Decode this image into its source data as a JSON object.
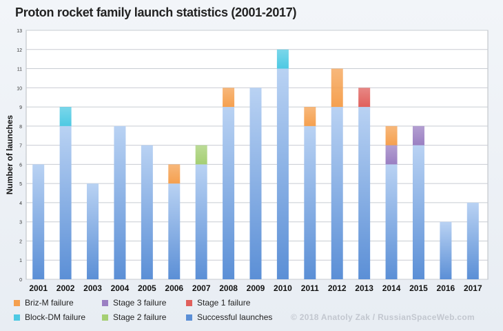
{
  "chart_data": {
    "type": "bar",
    "stacked": true,
    "title": "Proton rocket family launch statistics (2001-2017)",
    "ylabel": "Number of launches",
    "xlabel": "",
    "ylim": [
      0,
      13
    ],
    "yticks": [
      0,
      1,
      2,
      3,
      4,
      5,
      6,
      7,
      8,
      9,
      10,
      11,
      12,
      13
    ],
    "grid": true,
    "legend_position": "bottom",
    "categories": [
      "2001",
      "2002",
      "2003",
      "2004",
      "2005",
      "2006",
      "2007",
      "2008",
      "2009",
      "2010",
      "2011",
      "2012",
      "2013",
      "2014",
      "2015",
      "2016",
      "2017"
    ],
    "series": [
      {
        "name": "Successful launches",
        "color": "#5b8fd6",
        "values": [
          6,
          8,
          5,
          8,
          7,
          5,
          6,
          9,
          10,
          11,
          8,
          9,
          9,
          6,
          7,
          3,
          4
        ]
      },
      {
        "name": "Briz-M failure",
        "color": "#f5a04f",
        "values": [
          0,
          0,
          0,
          0,
          0,
          1,
          0,
          1,
          0,
          0,
          1,
          2,
          0,
          1,
          0,
          0,
          0
        ]
      },
      {
        "name": "Block-DM failure",
        "color": "#4ec9e3",
        "values": [
          0,
          1,
          0,
          0,
          0,
          0,
          0,
          0,
          0,
          1,
          0,
          0,
          0,
          0,
          0,
          0,
          0
        ]
      },
      {
        "name": "Stage 3 failure",
        "color": "#9a7fc2",
        "values": [
          0,
          0,
          0,
          0,
          0,
          0,
          0,
          0,
          0,
          0,
          0,
          0,
          0,
          1,
          1,
          0,
          0
        ]
      },
      {
        "name": "Stage 2 failure",
        "color": "#a5cf73",
        "values": [
          0,
          0,
          0,
          0,
          0,
          0,
          1,
          0,
          0,
          0,
          0,
          0,
          0,
          0,
          0,
          0,
          0
        ]
      },
      {
        "name": "Stage 1 failure",
        "color": "#e0605c",
        "values": [
          0,
          0,
          0,
          0,
          0,
          0,
          0,
          0,
          0,
          0,
          0,
          0,
          1,
          0,
          0,
          0,
          0
        ]
      }
    ],
    "stack_order": [
      "Successful launches",
      "Stage 1 failure",
      "Stage 2 failure",
      "Stage 3 failure",
      "Briz-M failure",
      "Block-DM failure"
    ]
  },
  "legend": [
    {
      "label": "Briz-M failure",
      "color": "#f5a04f"
    },
    {
      "label": "Stage 3 failure",
      "color": "#9a7fc2"
    },
    {
      "label": "Stage 1 failure",
      "color": "#e0605c"
    },
    {
      "label": "Block-DM failure",
      "color": "#4ec9e3"
    },
    {
      "label": "Stage 2 failure",
      "color": "#a5cf73"
    },
    {
      "label": "Successful launches",
      "color": "#5b8fd6"
    }
  ],
  "credit": "© 2018 Anatoly Zak / RussianSpaceWeb.com"
}
